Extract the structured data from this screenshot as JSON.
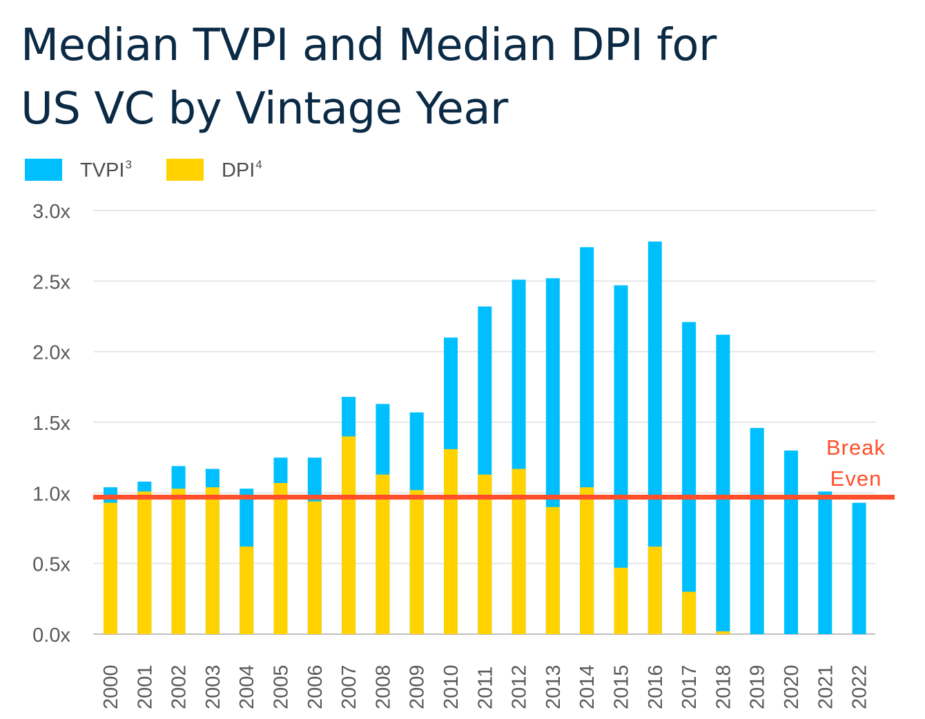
{
  "title_lines": [
    "Median TVPI and Median DPI for",
    "US VC by Vintage Year"
  ],
  "legend": [
    {
      "label": "TVPI",
      "sup": "3",
      "color": "#00bfff"
    },
    {
      "label": "DPI",
      "sup": "4",
      "color": "#ffd200"
    }
  ],
  "annotation": {
    "lines": [
      "Break",
      "Even"
    ],
    "color": "#ff4f2b",
    "value": 0.97
  },
  "chart_data": {
    "type": "bar",
    "title": "Median TVPI and Median DPI for US VC by Vintage Year",
    "categories": [
      "2000",
      "2001",
      "2002",
      "2003",
      "2004",
      "2005",
      "2006",
      "2007",
      "2008",
      "2009",
      "2010",
      "2011",
      "2012",
      "2013",
      "2014",
      "2015",
      "2016",
      "2017",
      "2018",
      "2019",
      "2020",
      "2021",
      "2022"
    ],
    "series": [
      {
        "name": "TVPI",
        "color": "#00bfff",
        "values": [
          1.04,
          1.08,
          1.19,
          1.17,
          1.03,
          1.25,
          1.25,
          1.68,
          1.63,
          1.57,
          2.1,
          2.32,
          2.51,
          2.52,
          2.74,
          2.47,
          2.78,
          2.21,
          2.12,
          1.46,
          1.3,
          1.01,
          0.93
        ]
      },
      {
        "name": "DPI",
        "color": "#ffd200",
        "values": [
          0.93,
          1.01,
          1.03,
          1.04,
          0.62,
          1.07,
          0.94,
          1.4,
          1.13,
          1.02,
          1.31,
          1.13,
          1.17,
          0.9,
          1.04,
          0.47,
          0.62,
          0.3,
          0.02,
          0.0,
          0.0,
          0.0,
          0.0
        ]
      }
    ],
    "ylim": [
      0,
      3.0
    ],
    "yticks": [
      0.0,
      0.5,
      1.0,
      1.5,
      2.0,
      2.5,
      3.0
    ],
    "ytick_labels": [
      "0.0x",
      "0.5x",
      "1.0x",
      "1.5x",
      "2.0x",
      "2.5x",
      "3.0x"
    ],
    "grid": true,
    "legend_position": "top-left",
    "reference_line": {
      "label": "Break Even",
      "value": 0.97,
      "color": "#ff4f2b"
    }
  }
}
